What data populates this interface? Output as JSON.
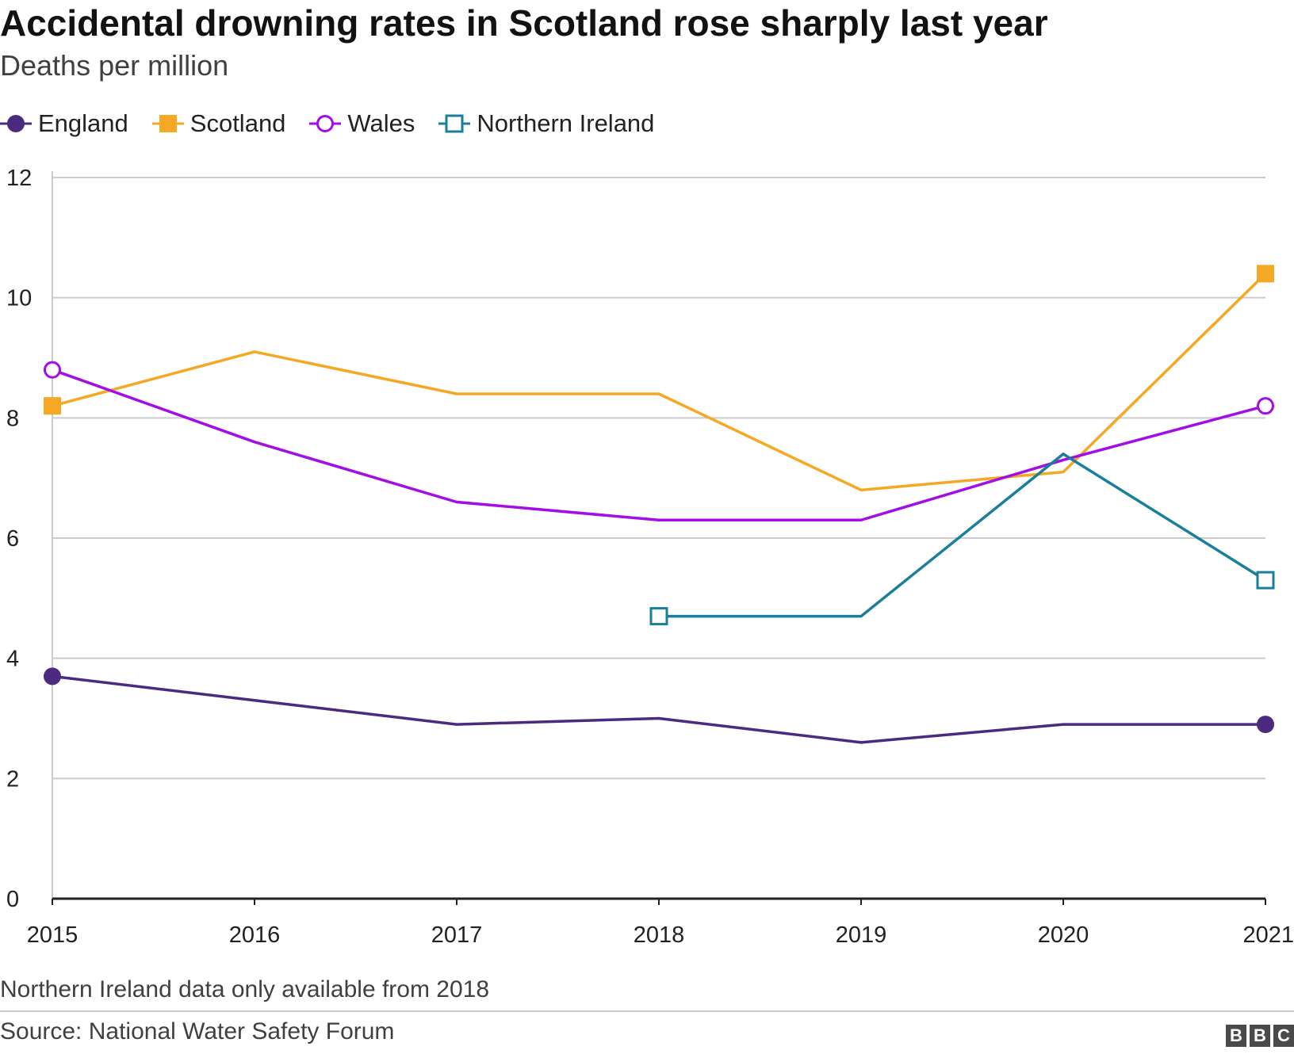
{
  "header": {
    "title": "Accidental drowning rates in Scotland rose sharply last year",
    "subtitle": "Deaths per million"
  },
  "legend": [
    {
      "label": "England",
      "color": "#4b2a7f",
      "marker": "filled-circle"
    },
    {
      "label": "Scotland",
      "color": "#f5a823",
      "marker": "filled-square"
    },
    {
      "label": "Wales",
      "color": "#a30de6",
      "marker": "open-circle"
    },
    {
      "label": "Northern Ireland",
      "color": "#1a7f9b",
      "marker": "open-square"
    }
  ],
  "chart_data": {
    "type": "line",
    "title": "Accidental drowning rates in Scotland rose sharply last year",
    "subtitle": "Deaths per million",
    "xlabel": "",
    "ylabel": "Deaths per million",
    "x": [
      "2015",
      "2016",
      "2017",
      "2018",
      "2019",
      "2020",
      "2021"
    ],
    "ylim": [
      0,
      12
    ],
    "yticks": [
      "0",
      "2",
      "4",
      "6",
      "8",
      "10",
      "12"
    ],
    "grid": true,
    "legend_position": "top-left",
    "series": [
      {
        "name": "England",
        "color": "#4b2a7f",
        "marker": "filled-circle",
        "values": [
          3.7,
          3.3,
          2.9,
          3.0,
          2.6,
          2.9,
          2.9
        ]
      },
      {
        "name": "Scotland",
        "color": "#f5a823",
        "marker": "filled-square",
        "values": [
          8.2,
          9.1,
          8.4,
          8.4,
          6.8,
          7.1,
          10.4
        ]
      },
      {
        "name": "Wales",
        "color": "#a30de6",
        "marker": "open-circle",
        "values": [
          8.8,
          7.6,
          6.6,
          6.3,
          6.3,
          7.3,
          8.2
        ]
      },
      {
        "name": "Northern Ireland",
        "color": "#1a7f9b",
        "marker": "open-square",
        "values": [
          null,
          null,
          null,
          4.7,
          4.7,
          7.4,
          5.3
        ]
      }
    ]
  },
  "footer": {
    "note": "Northern Ireland data only available from 2018",
    "source": "Source: National Water Safety Forum",
    "logo_letters": [
      "B",
      "B",
      "C"
    ]
  }
}
